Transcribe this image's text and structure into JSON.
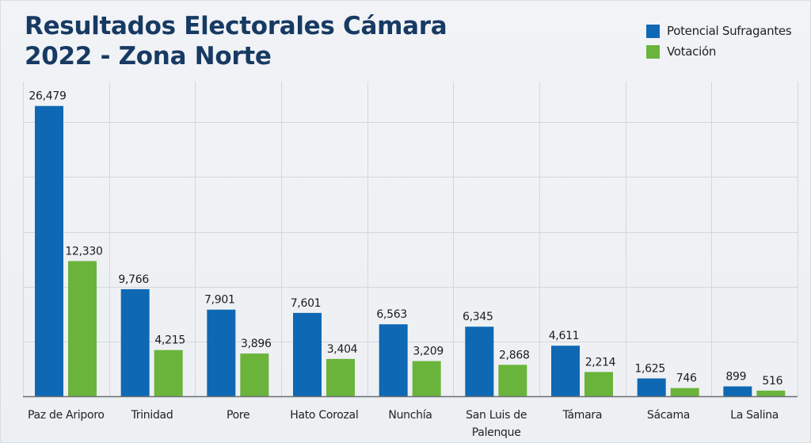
{
  "chart_data": {
    "type": "bar",
    "title": "Resultados Electorales Cámara 2022 - Zona Norte",
    "title_lines": [
      "Resultados Electorales Cámara",
      "2022 - Zona Norte"
    ],
    "xlabel": "",
    "ylabel": "",
    "categories": [
      "Paz de Ariporo",
      "Trinidad",
      "Pore",
      "Hato Corozal",
      "Nunchía",
      "San Luis de Palenque",
      "Támara",
      "Sácama",
      "La Salina"
    ],
    "category_label_lines": [
      [
        "Paz de Ariporo"
      ],
      [
        "Trinidad"
      ],
      [
        "Pore"
      ],
      [
        "Hato Corozal"
      ],
      [
        "Nunchía"
      ],
      [
        "San Luis de",
        "Palenque"
      ],
      [
        "Támara"
      ],
      [
        "Sácama"
      ],
      [
        "La Salina"
      ]
    ],
    "series": [
      {
        "name": "Potencial Sufragantes",
        "color": "#0f68b4",
        "values": [
          26479,
          9766,
          7901,
          7601,
          6563,
          6345,
          4611,
          1625,
          899
        ],
        "labels": [
          "26,479",
          "9,766",
          "7,901",
          "7,601",
          "6,563",
          "6,345",
          "4,611",
          "1,625",
          "899"
        ]
      },
      {
        "name": "Votación",
        "color": "#6ab43c",
        "values": [
          12330,
          4215,
          3896,
          3404,
          3209,
          2868,
          2214,
          746,
          516
        ],
        "labels": [
          "12,330",
          "4,215",
          "3,896",
          "3,404",
          "3,209",
          "2,868",
          "2,214",
          "746",
          "516"
        ]
      }
    ],
    "ylim": [
      0,
      28700
    ],
    "y_gridlines": [
      5000,
      10000,
      15000,
      20000,
      25000
    ],
    "y_tick_labels_visible": false,
    "grid": true,
    "legend_position": "top-right"
  }
}
